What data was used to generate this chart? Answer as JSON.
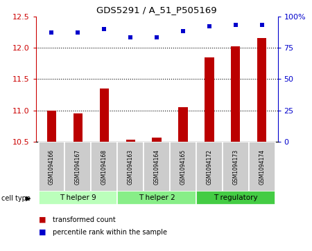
{
  "title": "GDS5291 / A_51_P505169",
  "samples": [
    "GSM1094166",
    "GSM1094167",
    "GSM1094168",
    "GSM1094163",
    "GSM1094164",
    "GSM1094165",
    "GSM1094172",
    "GSM1094173",
    "GSM1094174"
  ],
  "bar_values": [
    11.0,
    10.95,
    11.35,
    10.53,
    10.57,
    11.05,
    11.85,
    12.02,
    12.15
  ],
  "dot_values": [
    87,
    87,
    90,
    83,
    83,
    88,
    92,
    93,
    93
  ],
  "ylim_left": [
    10.5,
    12.5
  ],
  "ylim_right": [
    0,
    100
  ],
  "yticks_left": [
    10.5,
    11.0,
    11.5,
    12.0,
    12.5
  ],
  "yticks_right": [
    0,
    25,
    50,
    75,
    100
  ],
  "bar_color": "#bb0000",
  "dot_color": "#0000cc",
  "cell_types": [
    {
      "label": "T helper 9",
      "span": [
        0,
        3
      ],
      "color": "#bbffbb"
    },
    {
      "label": "T helper 2",
      "span": [
        3,
        6
      ],
      "color": "#88ee88"
    },
    {
      "label": "T regulatory",
      "span": [
        6,
        9
      ],
      "color": "#44cc44"
    }
  ],
  "legend_bar_label": "transformed count",
  "legend_dot_label": "percentile rank within the sample",
  "cell_type_label": "cell type",
  "axis_left_color": "#cc0000",
  "axis_right_color": "#0000cc",
  "sample_box_color": "#cccccc",
  "bar_width": 0.35
}
